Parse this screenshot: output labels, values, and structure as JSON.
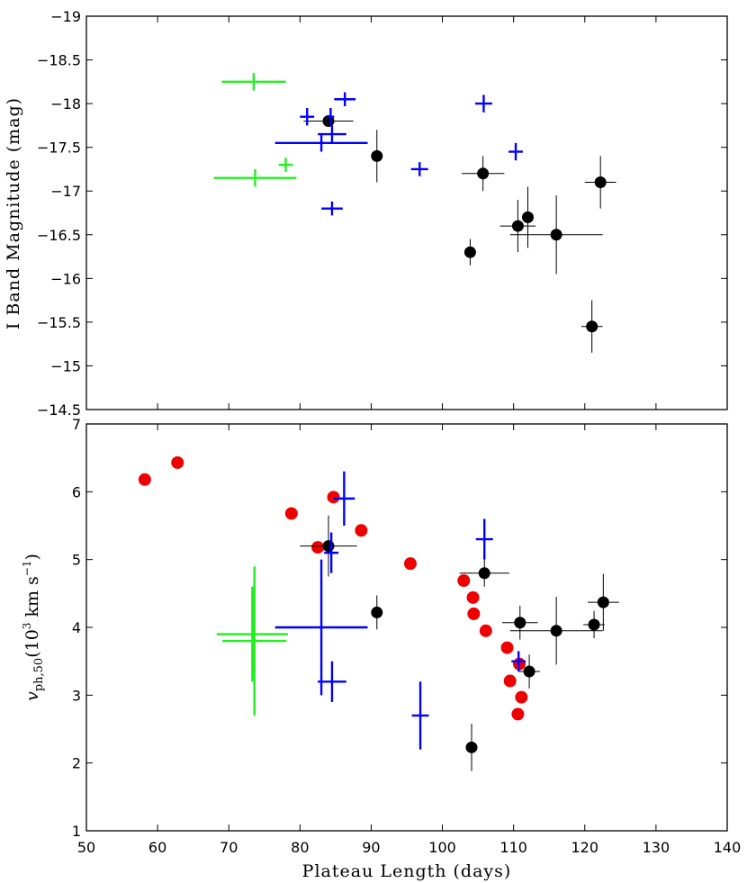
{
  "chart_data": [
    {
      "type": "scatter",
      "panel": "top",
      "xlabel": "",
      "ylabel": "I Band Magnitude (mag)",
      "xlim": [
        50,
        140
      ],
      "ylim": [
        -19,
        -14.5
      ],
      "y_inverted": true,
      "x_ticks": [
        50,
        60,
        70,
        80,
        90,
        100,
        110,
        120,
        130,
        140
      ],
      "y_ticks": [
        -19,
        -18.5,
        -18,
        -17.5,
        -17,
        -16.5,
        -16,
        -15.5,
        -15,
        -14.5
      ],
      "y_tick_labels": [
        "−19",
        "−18.5",
        "−18",
        "−17.5",
        "−17",
        "−16.5",
        "−16",
        "−15.5",
        "−15",
        "−14.5"
      ],
      "series": [
        {
          "name": "black",
          "color": "#000000",
          "marker": "circle",
          "points": [
            {
              "x": 84.0,
              "y": -17.8,
              "xerr": 3.5,
              "yerr": 0.05
            },
            {
              "x": 90.8,
              "y": -17.4,
              "xerr": 0.3,
              "yerr": 0.3
            },
            {
              "x": 105.7,
              "y": -17.2,
              "xerr": 3.0,
              "yerr": 0.2
            },
            {
              "x": 110.6,
              "y": -16.6,
              "xerr": 2.5,
              "yerr": 0.3
            },
            {
              "x": 112.0,
              "y": -16.7,
              "xerr": 0.5,
              "yerr": 0.35
            },
            {
              "x": 116.0,
              "y": -16.5,
              "xerr": 6.5,
              "yerr": 0.45
            },
            {
              "x": 103.9,
              "y": -16.3,
              "xerr": 0.3,
              "yerr": 0.15
            },
            {
              "x": 122.2,
              "y": -17.1,
              "xerr": 2.2,
              "yerr": 0.3
            },
            {
              "x": 121.0,
              "y": -15.45,
              "xerr": 1.5,
              "yerr": 0.3
            }
          ]
        },
        {
          "name": "blue",
          "color": "#0000ff",
          "marker": "cross",
          "points": [
            {
              "x": 81.0,
              "y": -17.85,
              "xerr": 1.0,
              "yerr": 0.1
            },
            {
              "x": 86.3,
              "y": -18.05,
              "xerr": 1.5,
              "yerr": 0.08
            },
            {
              "x": 83.0,
              "y": -17.55,
              "xerr": 0.3,
              "yerr": 0.1
            },
            {
              "x": 84.5,
              "y": -17.65,
              "xerr": 2.0,
              "yerr": 0.1
            },
            {
              "x": 84.3,
              "y": -17.85,
              "xerr": 0.5,
              "yerr": 0.1
            },
            {
              "x": 83.0,
              "y": -17.55,
              "xerr": 6.5,
              "yerr": 0.02
            },
            {
              "x": 96.8,
              "y": -17.25,
              "xerr": 1.2,
              "yerr": 0.08
            },
            {
              "x": 84.5,
              "y": -16.8,
              "xerr": 1.5,
              "yerr": 0.08
            },
            {
              "x": 105.8,
              "y": -18.0,
              "xerr": 1.2,
              "yerr": 0.1
            },
            {
              "x": 110.3,
              "y": -17.45,
              "xerr": 1.0,
              "yerr": 0.1
            }
          ]
        },
        {
          "name": "green",
          "color": "#22ee22",
          "marker": "cross",
          "points": [
            {
              "x": 73.5,
              "y": -18.25,
              "xerr": 4.5,
              "yerr": 0.1
            },
            {
              "x": 73.7,
              "y": -17.15,
              "xerr": 5.8,
              "yerr": 0.1
            },
            {
              "x": 78.0,
              "y": -17.3,
              "xerr": 1.0,
              "yerr": 0.08
            }
          ]
        }
      ]
    },
    {
      "type": "scatter",
      "panel": "bottom",
      "xlabel": "Plateau Length (days)",
      "ylabel": "v_ph,50 (10^3 km s^-1)",
      "xlim": [
        50,
        140
      ],
      "ylim": [
        1,
        7
      ],
      "x_ticks": [
        50,
        60,
        70,
        80,
        90,
        100,
        110,
        120,
        130,
        140
      ],
      "y_ticks": [
        1,
        2,
        3,
        4,
        5,
        6,
        7
      ],
      "series": [
        {
          "name": "red",
          "color": "#ee0000",
          "marker": "circle",
          "points": [
            {
              "x": 58.2,
              "y": 6.18
            },
            {
              "x": 62.8,
              "y": 6.43
            },
            {
              "x": 78.8,
              "y": 5.68
            },
            {
              "x": 82.5,
              "y": 5.18
            },
            {
              "x": 84.7,
              "y": 5.92
            },
            {
              "x": 88.6,
              "y": 5.43
            },
            {
              "x": 95.5,
              "y": 4.94
            },
            {
              "x": 103.0,
              "y": 4.69
            },
            {
              "x": 104.3,
              "y": 4.44
            },
            {
              "x": 104.4,
              "y": 4.2
            },
            {
              "x": 106.1,
              "y": 3.95
            },
            {
              "x": 109.1,
              "y": 3.7
            },
            {
              "x": 110.8,
              "y": 3.46
            },
            {
              "x": 109.5,
              "y": 3.21
            },
            {
              "x": 111.1,
              "y": 2.97
            },
            {
              "x": 110.6,
              "y": 2.72
            }
          ]
        },
        {
          "name": "black",
          "color": "#000000",
          "marker": "circle",
          "points": [
            {
              "x": 84.0,
              "y": 5.2,
              "xerr": 4.0,
              "yerr": 0.45
            },
            {
              "x": 90.8,
              "y": 4.22,
              "xerr": 0.3,
              "yerr": 0.25
            },
            {
              "x": 105.9,
              "y": 4.8,
              "xerr": 3.5,
              "yerr": 0.2
            },
            {
              "x": 110.9,
              "y": 4.07,
              "xerr": 2.5,
              "yerr": 0.25
            },
            {
              "x": 112.2,
              "y": 3.35,
              "xerr": 1.5,
              "yerr": 0.25
            },
            {
              "x": 116.0,
              "y": 3.95,
              "xerr": 6.5,
              "yerr": 0.5
            },
            {
              "x": 121.3,
              "y": 4.04,
              "xerr": 1.5,
              "yerr": 0.2
            },
            {
              "x": 122.6,
              "y": 4.37,
              "xerr": 2.2,
              "yerr": 0.42
            },
            {
              "x": 104.1,
              "y": 2.23,
              "xerr": 0.3,
              "yerr": 0.35
            }
          ]
        },
        {
          "name": "blue",
          "color": "#0000ff",
          "marker": "cross",
          "points": [
            {
              "x": 86.2,
              "y": 5.9,
              "xerr": 1.5,
              "yerr": 0.4
            },
            {
              "x": 84.4,
              "y": 5.1,
              "xerr": 1.0,
              "yerr": 0.3
            },
            {
              "x": 105.9,
              "y": 5.3,
              "xerr": 1.2,
              "yerr": 0.3
            },
            {
              "x": 83.0,
              "y": 4.0,
              "xerr": 6.5,
              "yerr": 1.0
            },
            {
              "x": 84.5,
              "y": 3.2,
              "xerr": 2.0,
              "yerr": 0.3
            },
            {
              "x": 96.9,
              "y": 2.7,
              "xerr": 1.2,
              "yerr": 0.5
            },
            {
              "x": 110.7,
              "y": 3.5,
              "xerr": 1.0,
              "yerr": 0.15
            }
          ]
        },
        {
          "name": "green",
          "color": "#22ee22",
          "marker": "cross",
          "points": [
            {
              "x": 73.3,
              "y": 3.9,
              "xerr": 5.0,
              "yerr": 0.7
            },
            {
              "x": 73.6,
              "y": 3.8,
              "xerr": 4.5,
              "yerr": 1.1
            }
          ]
        }
      ]
    }
  ]
}
